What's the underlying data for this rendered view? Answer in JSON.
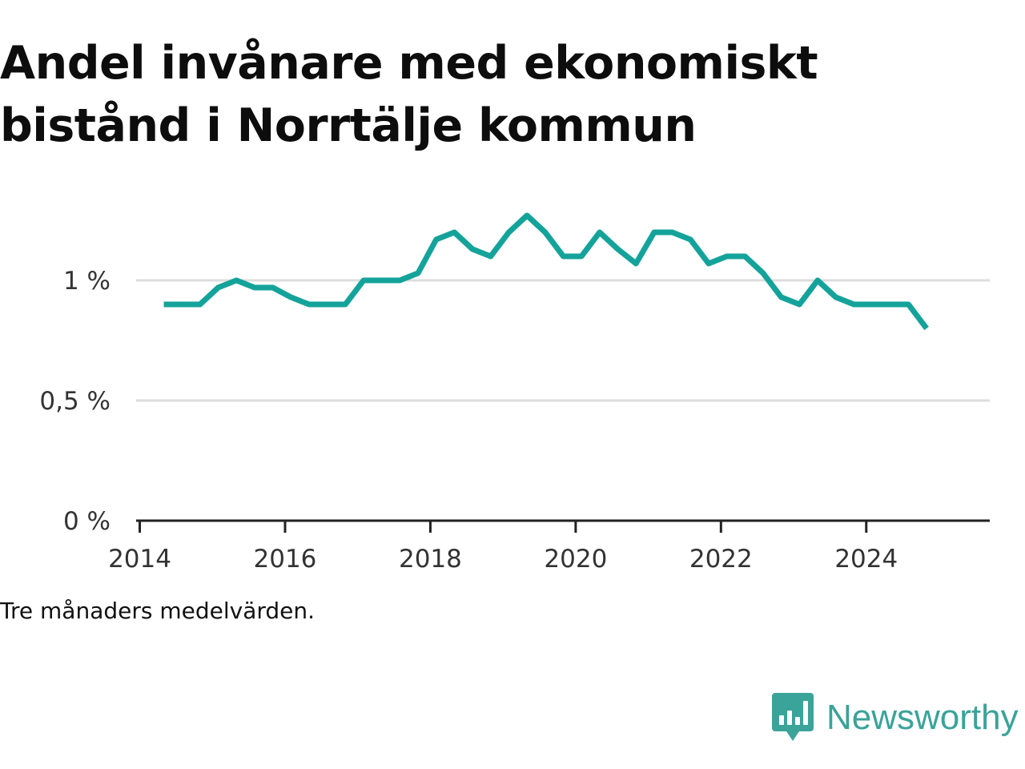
{
  "chart_data": {
    "type": "line",
    "title": "Andel invånare med ekonomiskt bistånd i Norrtälje kommun",
    "xlabel": "",
    "ylabel": "",
    "xlim": [
      2013.95,
      2025.7
    ],
    "ylim": [
      0,
      1.3
    ],
    "x_ticks": [
      2014,
      2016,
      2018,
      2020,
      2022,
      2024
    ],
    "x_tick_labels": [
      "2014",
      "2016",
      "2018",
      "2020",
      "2022",
      "2024"
    ],
    "y_ticks": [
      0,
      0.5,
      1
    ],
    "y_tick_labels": [
      "0 %",
      "0,5 %",
      "1 %"
    ],
    "grid": true,
    "legend": "none",
    "series": [
      {
        "color": "#14a39a",
        "x": [
          2014.33,
          2014.58,
          2014.83,
          2015.08,
          2015.33,
          2015.58,
          2015.83,
          2016.08,
          2016.33,
          2016.58,
          2016.83,
          2017.08,
          2017.33,
          2017.58,
          2017.83,
          2018.08,
          2018.33,
          2018.58,
          2018.83,
          2019.08,
          2019.33,
          2019.58,
          2019.83,
          2020.08,
          2020.33,
          2020.58,
          2020.83,
          2021.08,
          2021.33,
          2021.58,
          2021.83,
          2022.08,
          2022.33,
          2022.58,
          2022.83,
          2023.08,
          2023.33,
          2023.58,
          2023.83,
          2024.08,
          2024.33,
          2024.58,
          2024.83
        ],
        "y": [
          0.9,
          0.9,
          0.9,
          0.97,
          1.0,
          0.97,
          0.97,
          0.93,
          0.9,
          0.9,
          0.9,
          1.0,
          1.0,
          1.0,
          1.03,
          1.17,
          1.2,
          1.13,
          1.1,
          1.2,
          1.27,
          1.2,
          1.1,
          1.1,
          1.2,
          1.13,
          1.07,
          1.2,
          1.2,
          1.17,
          1.07,
          1.1,
          1.1,
          1.03,
          0.93,
          0.9,
          1.0,
          0.93,
          0.9,
          0.9,
          0.9,
          0.9,
          0.8
        ]
      }
    ]
  },
  "note": "Tre månaders medelvärden.",
  "brand": {
    "name": "Newsworthy",
    "icon": "newsworthy-chart-badge-icon",
    "color": "#3aa39a"
  },
  "colors": {
    "line": "#14a39a",
    "grid": "#dddddd",
    "axis": "#222222",
    "text": "#111111"
  }
}
